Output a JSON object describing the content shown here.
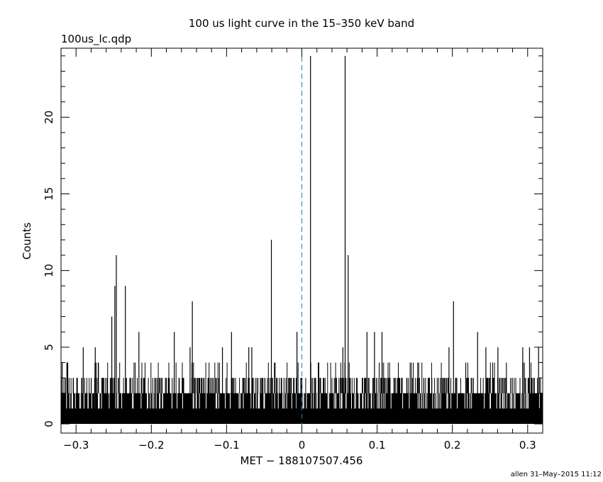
{
  "chart_data": {
    "type": "bar",
    "title": "100 us light curve in the 15–350 keV band",
    "subtitle": "100us_lc.qdp",
    "xlabel": "MET − 188107507.456",
    "ylabel": "Counts",
    "footer": "allen 31–May–2015 11:12",
    "xlim": [
      -0.32,
      0.32
    ],
    "ylim": [
      -0.6,
      24.5
    ],
    "x_ticks": [
      -0.3,
      -0.2,
      -0.1,
      0,
      0.1,
      0.2,
      0.3
    ],
    "x_tick_labels": [
      "−0.3",
      "−0.2",
      "−0.1",
      "0",
      "0.1",
      "0.2",
      "0.3"
    ],
    "y_ticks": [
      0,
      5,
      10,
      15,
      20
    ],
    "y_tick_labels": [
      "0",
      "5",
      "10",
      "15",
      "20"
    ],
    "bin_width": 0.0001,
    "background_level": 2,
    "marker_x": 0,
    "marker_color": "#1f7fb4",
    "line_color": "#000000",
    "spikes": [
      [
        -0.3185,
        4
      ],
      [
        -0.2905,
        5
      ],
      [
        -0.2745,
        5
      ],
      [
        -0.2525,
        7
      ],
      [
        -0.2485,
        9
      ],
      [
        -0.2465,
        11
      ],
      [
        -0.2345,
        9
      ],
      [
        -0.2165,
        6
      ],
      [
        -0.1695,
        6
      ],
      [
        -0.1485,
        5
      ],
      [
        -0.1455,
        8
      ],
      [
        -0.1055,
        5
      ],
      [
        -0.0935,
        6
      ],
      [
        -0.0705,
        5
      ],
      [
        -0.0665,
        5
      ],
      [
        -0.0405,
        12
      ],
      [
        -0.0065,
        6
      ],
      [
        0.0115,
        24
      ],
      [
        0.0545,
        5
      ],
      [
        0.0575,
        24
      ],
      [
        0.0615,
        11
      ],
      [
        0.0865,
        6
      ],
      [
        0.0965,
        6
      ],
      [
        0.1065,
        6
      ],
      [
        0.1955,
        5
      ],
      [
        0.2015,
        8
      ],
      [
        0.2335,
        6
      ],
      [
        0.2445,
        5
      ],
      [
        0.2605,
        5
      ],
      [
        0.2935,
        5
      ],
      [
        0.3025,
        5
      ],
      [
        0.3145,
        5
      ]
    ]
  }
}
